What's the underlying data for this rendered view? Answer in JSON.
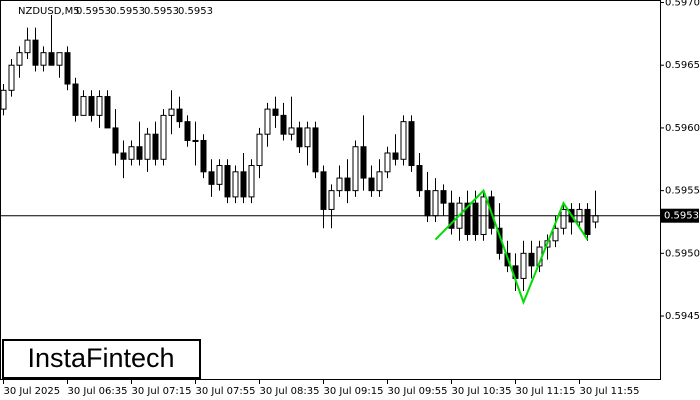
{
  "chart_data": {
    "type": "candlestick",
    "symbol": "NZDUSD,M5",
    "header_values": [
      0.5953,
      0.5953,
      0.5953,
      0.5953
    ],
    "brand": "InstaFintech",
    "categories": [
      "30 Jul 2025",
      null,
      null,
      null,
      null,
      null,
      null,
      null,
      "30 Jul 06:35",
      null,
      null,
      null,
      null,
      null,
      null,
      null,
      "30 Jul 07:15",
      null,
      null,
      null,
      null,
      null,
      null,
      null,
      "30 Jul 07:55",
      null,
      null,
      null,
      null,
      null,
      null,
      null,
      "30 Jul 08:35",
      null,
      null,
      null,
      null,
      null,
      null,
      null,
      "30 Jul 09:15",
      null,
      null,
      null,
      null,
      null,
      null,
      null,
      "30 Jul 09:55",
      null,
      null,
      null,
      null,
      null,
      null,
      null,
      "30 Jul 10:35",
      null,
      null,
      null,
      null,
      null,
      null,
      null,
      "30 Jul 11:15",
      null,
      null,
      null,
      null,
      null,
      null,
      null,
      "30 Jul 11:55",
      null,
      null
    ],
    "open": [
      0.59615,
      0.5963,
      0.5965,
      0.5966,
      0.5967,
      0.5965,
      0.5966,
      0.5965,
      0.5966,
      0.59635,
      0.5961,
      0.59625,
      0.5961,
      0.59625,
      0.596,
      0.5958,
      0.59575,
      0.59585,
      0.59575,
      0.59595,
      0.59575,
      0.5961,
      0.59615,
      0.59605,
      0.5959,
      0.5959,
      0.59565,
      0.59555,
      0.5957,
      0.59545,
      0.59565,
      0.59545,
      0.5957,
      0.59595,
      0.59615,
      0.5961,
      0.59595,
      0.596,
      0.59585,
      0.596,
      0.59565,
      0.59535,
      0.5955,
      0.5956,
      0.5955,
      0.59585,
      0.5956,
      0.5955,
      0.59565,
      0.5958,
      0.59575,
      0.59605,
      0.5957,
      0.5955,
      0.5953,
      0.5955,
      0.5954,
      0.5952,
      0.5954,
      0.5954,
      0.59515,
      0.59545,
      0.5952,
      0.595,
      0.5949,
      0.5948,
      0.595,
      0.5949,
      0.59505,
      0.5951,
      0.5952,
      0.59535,
      0.59525,
      0.59535,
      0.59525
    ],
    "high": [
      0.59635,
      0.59655,
      0.59665,
      0.5968,
      0.5968,
      0.59665,
      0.5969,
      0.5966,
      0.59665,
      0.5964,
      0.5963,
      0.5963,
      0.5963,
      0.5963,
      0.59615,
      0.5959,
      0.5959,
      0.59605,
      0.596,
      0.59605,
      0.59615,
      0.5963,
      0.59625,
      0.5961,
      0.59605,
      0.59595,
      0.59575,
      0.59575,
      0.59575,
      0.5957,
      0.5958,
      0.59575,
      0.596,
      0.5962,
      0.59625,
      0.5962,
      0.59625,
      0.59605,
      0.59605,
      0.59605,
      0.5957,
      0.59555,
      0.5957,
      0.59575,
      0.5959,
      0.5961,
      0.5957,
      0.59575,
      0.59585,
      0.59595,
      0.5961,
      0.5961,
      0.5958,
      0.59565,
      0.5956,
      0.59555,
      0.5955,
      0.59545,
      0.5955,
      0.5955,
      0.5955,
      0.5955,
      0.5954,
      0.5951,
      0.595,
      0.5951,
      0.5951,
      0.5951,
      0.59515,
      0.5953,
      0.5954,
      0.5954,
      0.5954,
      0.5954,
      0.5955
    ],
    "low": [
      0.5961,
      0.59625,
      0.5964,
      0.59655,
      0.59645,
      0.59645,
      0.5965,
      0.5964,
      0.5963,
      0.59605,
      0.5961,
      0.59605,
      0.596,
      0.596,
      0.5957,
      0.5956,
      0.5957,
      0.5957,
      0.59565,
      0.5957,
      0.5957,
      0.59595,
      0.596,
      0.59585,
      0.5957,
      0.5956,
      0.59545,
      0.5955,
      0.5954,
      0.5954,
      0.5954,
      0.5954,
      0.5956,
      0.59585,
      0.596,
      0.5959,
      0.5959,
      0.5958,
      0.5957,
      0.5956,
      0.5952,
      0.5952,
      0.59545,
      0.5954,
      0.59545,
      0.5955,
      0.59545,
      0.59545,
      0.5956,
      0.5957,
      0.5957,
      0.59565,
      0.59545,
      0.59525,
      0.59525,
      0.5953,
      0.59515,
      0.5951,
      0.5951,
      0.5951,
      0.5951,
      0.59515,
      0.59495,
      0.59485,
      0.5947,
      0.5947,
      0.5948,
      0.59485,
      0.59495,
      0.59505,
      0.59515,
      0.59515,
      0.5952,
      0.5951,
      0.5952
    ],
    "close": [
      0.5963,
      0.5965,
      0.5966,
      0.5967,
      0.5965,
      0.5966,
      0.5965,
      0.5966,
      0.59635,
      0.5961,
      0.59625,
      0.5961,
      0.59625,
      0.596,
      0.5958,
      0.59575,
      0.59585,
      0.59575,
      0.59595,
      0.59575,
      0.5961,
      0.59615,
      0.59605,
      0.5959,
      0.5959,
      0.59565,
      0.59555,
      0.5957,
      0.59545,
      0.59565,
      0.59545,
      0.5957,
      0.59595,
      0.59615,
      0.5961,
      0.59595,
      0.596,
      0.59585,
      0.596,
      0.59565,
      0.59535,
      0.5955,
      0.5956,
      0.5955,
      0.59585,
      0.5956,
      0.5955,
      0.59565,
      0.5958,
      0.59575,
      0.59605,
      0.5957,
      0.5955,
      0.5953,
      0.5955,
      0.5954,
      0.5952,
      0.5954,
      0.59515,
      0.59515,
      0.59545,
      0.5952,
      0.595,
      0.5949,
      0.5948,
      0.595,
      0.5949,
      0.59505,
      0.5951,
      0.5952,
      0.59535,
      0.59525,
      0.59535,
      0.59515,
      0.5953
    ],
    "last_price": 0.5953,
    "pattern": {
      "color": "#00dd00",
      "x": [
        54,
        60,
        65,
        70,
        73
      ],
      "values": [
        0.59511,
        0.5955,
        0.59461,
        0.5954,
        0.59511
      ]
    },
    "ylim": [
      0.59399,
      0.59702
    ],
    "yticks": [
      {
        "value": 0.597,
        "label": "0.5970"
      },
      0.5965,
      {
        "value": 0.596,
        "label": "0.5960"
      },
      0.5955,
      {
        "value": 0.595,
        "label": "0.5950"
      },
      0.5945
    ]
  }
}
